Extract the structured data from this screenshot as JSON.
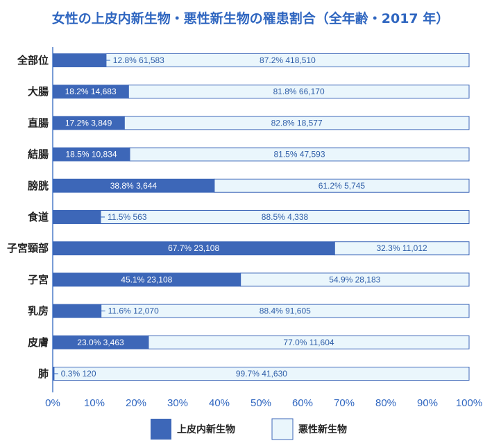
{
  "chart_data": {
    "type": "bar",
    "orientation": "horizontal",
    "stacked": true,
    "title": "女性の上皮内新生物・悪性新生物の罹患割合（全年齢・2017 年）",
    "categories": [
      "全部位",
      "大腸",
      "直腸",
      "結腸",
      "膀胱",
      "食道",
      "子宮頸部",
      "子宮",
      "乳房",
      "皮膚",
      "肺"
    ],
    "series": [
      {
        "name": "上皮内新生物",
        "color": "#3d67b8",
        "values": [
          12.8,
          18.2,
          17.2,
          18.5,
          38.8,
          11.5,
          67.7,
          45.1,
          11.6,
          23.0,
          0.3
        ],
        "counts": [
          "61,583",
          "14,683",
          "3,849",
          "10,834",
          "3,644",
          "563",
          "23,108",
          "23,108",
          "12,070",
          "3,463",
          "120"
        ],
        "labels": [
          "12.8%",
          "18.2%",
          "17.2%",
          "18.5%",
          "38.8%",
          "11.5%",
          "67.7%",
          "45.1%",
          "11.6%",
          "23.0%",
          "0.3%"
        ]
      },
      {
        "name": "悪性新生物",
        "color": "#eaf6fc",
        "values": [
          87.2,
          81.8,
          82.8,
          81.5,
          61.2,
          88.5,
          32.3,
          54.9,
          88.4,
          77.0,
          99.7
        ],
        "counts": [
          "418,510",
          "66,170",
          "18,577",
          "47,593",
          "5,745",
          "4,338",
          "11,012",
          "28,183",
          "91,605",
          "11,604",
          "41,630"
        ],
        "labels": [
          "87.2%",
          "81.8%",
          "82.8%",
          "81.5%",
          "61.2%",
          "88.5%",
          "32.3%",
          "54.9%",
          "88.4%",
          "77.0%",
          "99.7%"
        ]
      }
    ],
    "xlim": [
      0,
      100
    ],
    "xticks": [
      "0%",
      "10%",
      "20%",
      "30%",
      "40%",
      "50%",
      "60%",
      "70%",
      "80%",
      "90%",
      "100%"
    ],
    "grid": false,
    "legend_position": "bottom"
  }
}
